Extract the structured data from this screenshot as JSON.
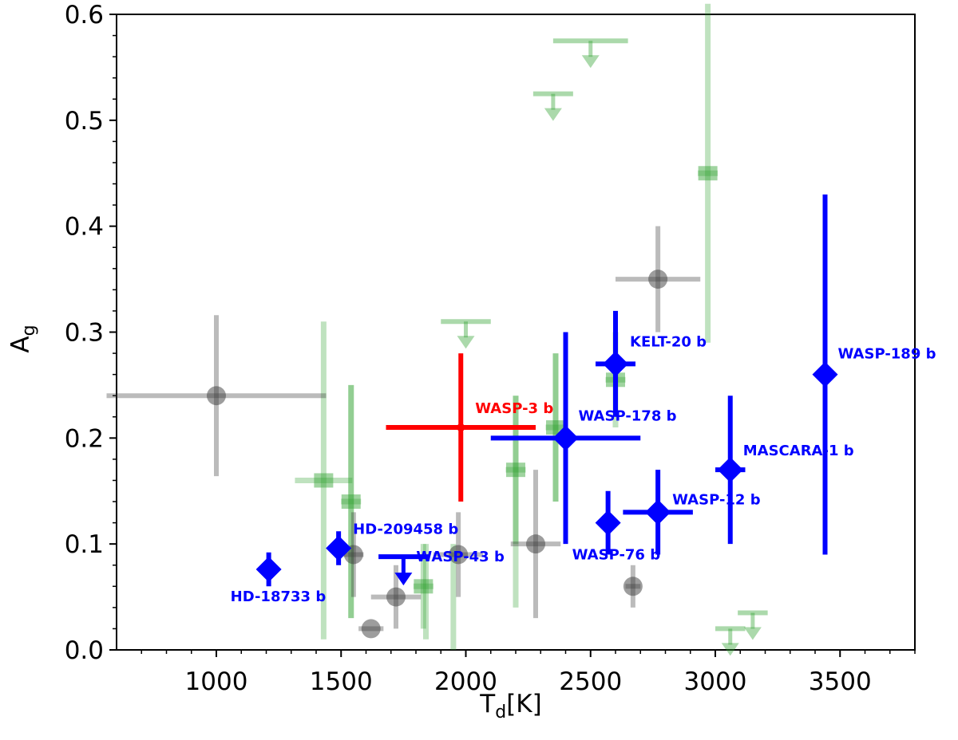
{
  "chart_data": {
    "type": "scatter",
    "title": "",
    "xlabel": "T_d[K]",
    "ylabel": "A_g",
    "xlim": [
      600,
      3800
    ],
    "ylim": [
      0.0,
      0.6
    ],
    "xticks": [
      1000,
      1500,
      2000,
      2500,
      3000,
      3500
    ],
    "yticks": [
      0.0,
      0.1,
      0.2,
      0.3,
      0.4,
      0.5,
      0.6
    ],
    "colors": {
      "green": "#2ca02c",
      "gray": "#3c3c3c",
      "blue": "#0000ff",
      "red": "#ff0000"
    },
    "green_points": [
      {
        "x": 1430,
        "y": 0.16,
        "xerr": 115,
        "yerr": 0.15
      },
      {
        "x": 1540,
        "y": 0.14,
        "xerr": 40,
        "yerr": 0.11
      },
      {
        "x": 1830,
        "y": 0.06,
        "xerr": 40,
        "yerr": 0.04
      },
      {
        "x": 2200,
        "y": 0.17,
        "xerr": 40,
        "yerr": 0.07
      },
      {
        "x": 2360,
        "y": 0.21,
        "xerr": 40,
        "yerr": 0.07
      },
      {
        "x": 2600,
        "y": 0.255,
        "xerr": 40,
        "yerr": 0.045
      },
      {
        "x": 2970,
        "y": 0.45,
        "xerr": 40,
        "yerr": 0.16
      }
    ],
    "green_lines": [
      {
        "x": 1540,
        "y1": 0.03,
        "y2": 0.25
      },
      {
        "x": 1840,
        "y1": 0.01,
        "y2": 0.1
      },
      {
        "x": 1950,
        "y1": 0.0,
        "y2": 0.1
      },
      {
        "x": 2200,
        "y1": 0.04,
        "y2": 0.24
      },
      {
        "x": 2360,
        "y1": 0.14,
        "y2": 0.28
      }
    ],
    "green_upper_limits": [
      {
        "x": 2500,
        "y": 0.575,
        "xerr": 150
      },
      {
        "x": 2350,
        "y": 0.525,
        "xerr": 80
      },
      {
        "x": 2000,
        "y": 0.31,
        "xerr": 100
      },
      {
        "x": 3150,
        "y": 0.035,
        "xerr": 60
      },
      {
        "x": 3060,
        "y": 0.02,
        "xerr": 60
      }
    ],
    "gray_points": [
      {
        "x": 1000,
        "y": 0.24,
        "xerr": 440,
        "yerr": 0.076
      },
      {
        "x": 1550,
        "y": 0.09,
        "xerr": 40,
        "yerr": 0.04
      },
      {
        "x": 1620,
        "y": 0.02,
        "xerr": 50,
        "yerr": 0.0
      },
      {
        "x": 1720,
        "y": 0.05,
        "xerr": 100,
        "yerr": 0.03
      },
      {
        "x": 1970,
        "y": 0.09,
        "xerr": 100,
        "yerr": 0.04
      },
      {
        "x": 2280,
        "y": 0.1,
        "xerr": 100,
        "yerr": 0.07
      },
      {
        "x": 2670,
        "y": 0.06,
        "xerr": 30,
        "yerr": 0.02
      },
      {
        "x": 2770,
        "y": 0.35,
        "xerr": 170,
        "yerr": 0.05
      }
    ],
    "blue_points": [
      {
        "name": "HD-18733 b",
        "x": 1210,
        "y": 0.076,
        "xerr": 0,
        "yerr": 0.016
      },
      {
        "name": "HD-209458 b",
        "x": 1490,
        "y": 0.096,
        "xerr": 30,
        "yerr": 0.016
      },
      {
        "name": "KELT-20 b",
        "x": 2600,
        "y": 0.27,
        "xerr": 80,
        "yerr": 0.05
      },
      {
        "name": "WASP-178 b",
        "x": 2400,
        "y": 0.2,
        "xerr": 300,
        "yerr": 0.1
      },
      {
        "name": "WASP-76 b",
        "x": 2570,
        "y": 0.12,
        "xerr": 40,
        "yerr": 0.03
      },
      {
        "name": "WASP-12 b",
        "x": 2770,
        "y": 0.13,
        "xerr": 140,
        "yerr": 0.04
      },
      {
        "name": "MASCARA-1 b",
        "x": 3060,
        "y": 0.17,
        "xerr": 60,
        "yerr": 0.07
      },
      {
        "name": "WASP-189 b",
        "x": 3440,
        "y": 0.26,
        "xerr": 0,
        "yerr": 0.17
      }
    ],
    "blue_upper_limits": [
      {
        "name": "WASP-43 b",
        "x": 1750,
        "y": 0.088,
        "xerr": 100
      }
    ],
    "red_points": [
      {
        "name": "WASP-3 b",
        "x": 1980,
        "y": 0.21,
        "xerr": 300,
        "yerr": 0.07
      }
    ]
  }
}
